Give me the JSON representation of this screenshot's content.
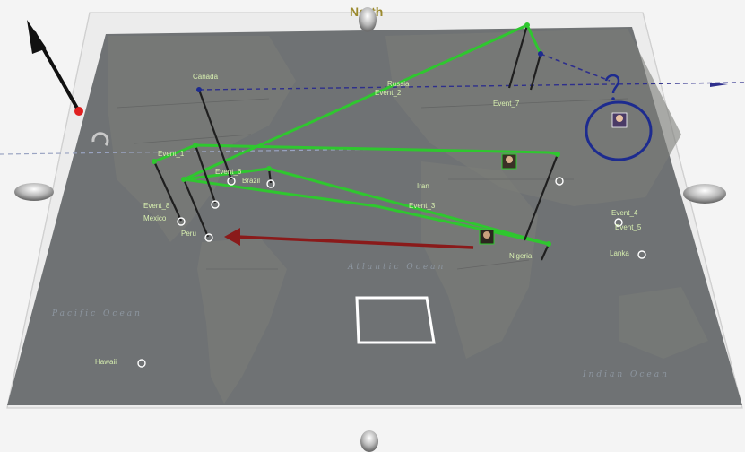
{
  "scene": {
    "compass_label": "North",
    "ocean_labels": {
      "atlantic": "Atlantic Ocean",
      "pacific": "Pacific Ocean",
      "indian": "Indian Ocean"
    },
    "colors": {
      "map": "#6f7274",
      "event_link": "#2fc72f",
      "tether": "#1f1f1f",
      "projection_line": "#2e2f8c",
      "migration_arrow": "#8a1a1a",
      "annotation": "#1d2b8f",
      "selection_box": "#ffffff",
      "label": "#d8f0b0"
    },
    "events": [
      "Event_1",
      "Event_2",
      "Event_3",
      "Event_4",
      "Event_5",
      "Event_6",
      "Event_7",
      "Event_8"
    ],
    "place_labels": [
      "Canada",
      "Mexico",
      "Peru",
      "Brazil",
      "Nigeria",
      "Russia",
      "Iran",
      "Lanka",
      "Hawaii"
    ]
  }
}
